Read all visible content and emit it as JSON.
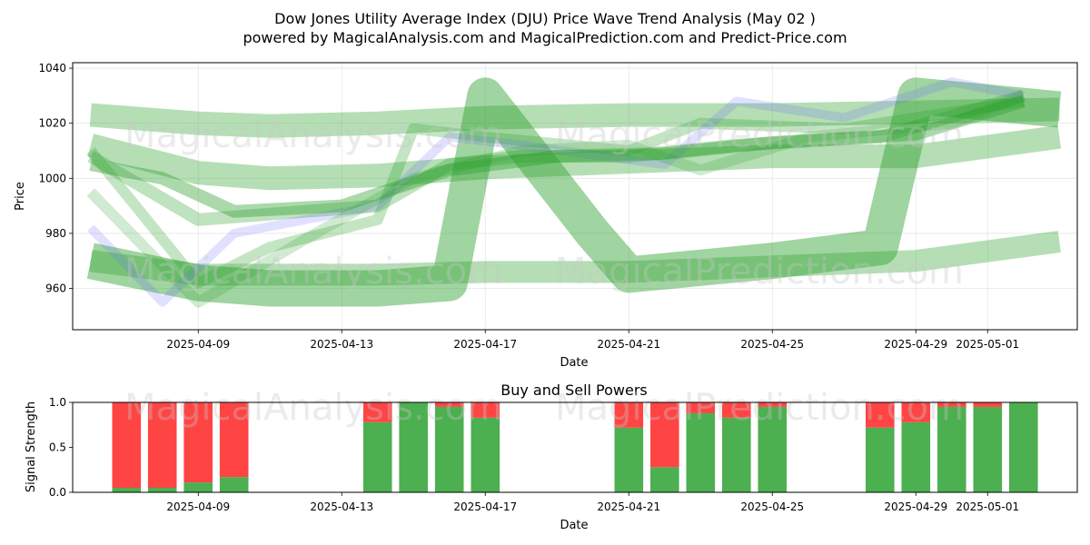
{
  "title_line1": "Dow Jones Utility Average Index (DJU) Price Wave Trend Analysis (May 02 )",
  "title_line2": "powered by MagicalAnalysis.com and MagicalPrediction.com and Predict-Price.com",
  "watermarks": [
    "MagicalAnalysis.com",
    "MagicalPrediction.com"
  ],
  "colors": {
    "green": "#2ca02c",
    "blue": "#6b6bff",
    "buy": "#4caf50",
    "sell": "#ff4444"
  },
  "chart_data": [
    {
      "type": "line",
      "title": "",
      "xlabel": "Date",
      "ylabel": "Price",
      "xlim": [
        "2025-04-05T12:00",
        "2025-05-03T12:00"
      ],
      "ylim": [
        945,
        1042
      ],
      "x_ticks": [
        "2025-04-09",
        "2025-04-13",
        "2025-04-17",
        "2025-04-21",
        "2025-04-25",
        "2025-04-29",
        "2025-05-01"
      ],
      "y_ticks": [
        960,
        980,
        1000,
        1020,
        1040
      ],
      "grid": true,
      "series": [
        {
          "color": "#2ca02c",
          "alpha": 0.35,
          "width": 26,
          "points": [
            [
              "2025-04-06",
              1023
            ],
            [
              "2025-04-09",
              1020
            ],
            [
              "2025-04-11",
              1019
            ],
            [
              "2025-04-14",
              1020
            ],
            [
              "2025-04-17",
              1022
            ],
            [
              "2025-04-21",
              1023
            ],
            [
              "2025-04-25",
              1023
            ],
            [
              "2025-04-29",
              1024
            ],
            [
              "2025-05-03",
              1025
            ]
          ]
        },
        {
          "color": "#2ca02c",
          "alpha": 0.35,
          "width": 26,
          "points": [
            [
              "2025-04-06",
              1012
            ],
            [
              "2025-04-09",
              1002
            ],
            [
              "2025-04-11",
              1000
            ],
            [
              "2025-04-14",
              1001
            ],
            [
              "2025-04-17",
              1004
            ],
            [
              "2025-04-21",
              1006
            ],
            [
              "2025-04-25",
              1008
            ],
            [
              "2025-04-29",
              1008
            ],
            [
              "2025-05-03",
              1015
            ]
          ]
        },
        {
          "color": "#2ca02c",
          "alpha": 0.45,
          "width": 40,
          "points": [
            [
              "2025-04-06",
              970
            ],
            [
              "2025-04-09",
              962
            ],
            [
              "2025-04-11",
              960
            ],
            [
              "2025-04-14",
              960
            ],
            [
              "2025-04-16",
              962
            ],
            [
              "2025-04-17",
              1030
            ],
            [
              "2025-04-20",
              980
            ],
            [
              "2025-04-21",
              965
            ],
            [
              "2025-04-25",
              970
            ],
            [
              "2025-04-28",
              975
            ],
            [
              "2025-04-29",
              1030
            ],
            [
              "2025-05-03",
              1025
            ]
          ]
        },
        {
          "color": "#2ca02c",
          "alpha": 0.35,
          "width": 24,
          "points": [
            [
              "2025-04-06",
              970
            ],
            [
              "2025-04-09",
              965
            ],
            [
              "2025-04-11",
              965
            ],
            [
              "2025-04-14",
              965
            ],
            [
              "2025-04-17",
              966
            ],
            [
              "2025-04-21",
              966
            ],
            [
              "2025-04-25",
              968
            ],
            [
              "2025-04-29",
              970
            ],
            [
              "2025-05-03",
              977
            ]
          ]
        },
        {
          "color": "#2ca02c",
          "alpha": 0.3,
          "width": 14,
          "points": [
            [
              "2025-04-06",
              1008
            ],
            [
              "2025-04-09",
              985
            ],
            [
              "2025-04-11",
              987
            ],
            [
              "2025-04-14",
              990
            ],
            [
              "2025-04-16",
              1005
            ],
            [
              "2025-04-18",
              1008
            ],
            [
              "2025-04-21",
              1008
            ],
            [
              "2025-04-24",
              1012
            ],
            [
              "2025-04-28",
              1015
            ],
            [
              "2025-05-02",
              1030
            ]
          ]
        },
        {
          "color": "#2ca02c",
          "alpha": 0.28,
          "width": 12,
          "points": [
            [
              "2025-04-06",
              1010
            ],
            [
              "2025-04-09",
              962
            ],
            [
              "2025-04-11",
              975
            ],
            [
              "2025-04-14",
              985
            ],
            [
              "2025-04-15",
              1018
            ],
            [
              "2025-04-17",
              1015
            ],
            [
              "2025-04-21",
              1010
            ],
            [
              "2025-04-23",
              1020
            ],
            [
              "2025-04-27",
              1018
            ],
            [
              "2025-05-02",
              1028
            ]
          ]
        },
        {
          "color": "#6b6bff",
          "alpha": 0.2,
          "width": 10,
          "points": [
            [
              "2025-04-06",
              982
            ],
            [
              "2025-04-08",
              955
            ],
            [
              "2025-04-10",
              980
            ],
            [
              "2025-04-14",
              990
            ],
            [
              "2025-04-16",
              1015
            ],
            [
              "2025-04-18",
              1012
            ],
            [
              "2025-04-22",
              1005
            ],
            [
              "2025-04-24",
              1028
            ],
            [
              "2025-04-27",
              1022
            ],
            [
              "2025-04-30",
              1035
            ],
            [
              "2025-05-02",
              1030
            ]
          ]
        },
        {
          "color": "#2ca02c",
          "alpha": 0.4,
          "width": 14,
          "points": [
            [
              "2025-04-06",
              1005
            ],
            [
              "2025-04-08",
              1000
            ],
            [
              "2025-04-10",
              988
            ],
            [
              "2025-04-13",
              990
            ],
            [
              "2025-04-16",
              1003
            ],
            [
              "2025-04-19",
              1008
            ],
            [
              "2025-04-22",
              1009
            ],
            [
              "2025-04-25",
              1013
            ],
            [
              "2025-04-29",
              1016
            ],
            [
              "2025-05-02",
              1028
            ]
          ]
        },
        {
          "color": "#2ca02c",
          "alpha": 0.22,
          "width": 12,
          "points": [
            [
              "2025-04-06",
              995
            ],
            [
              "2025-04-09",
              955
            ],
            [
              "2025-04-12",
              978
            ],
            [
              "2025-04-15",
              1000
            ],
            [
              "2025-04-18",
              1010
            ],
            [
              "2025-04-21",
              1012
            ],
            [
              "2025-04-23",
              1003
            ],
            [
              "2025-04-26",
              1015
            ],
            [
              "2025-04-30",
              1020
            ],
            [
              "2025-05-02",
              1030
            ]
          ]
        }
      ]
    },
    {
      "type": "bar",
      "title": "Buy and Sell Powers",
      "xlabel": "Date",
      "ylabel": "Signal Strength",
      "xlim": [
        "2025-04-05T12:00",
        "2025-05-03T12:00"
      ],
      "ylim": [
        0,
        1
      ],
      "x_ticks": [
        "2025-04-09",
        "2025-04-13",
        "2025-04-17",
        "2025-04-21",
        "2025-04-25",
        "2025-04-29",
        "2025-05-01"
      ],
      "y_ticks": [
        "0.0",
        "0.5",
        "1.0"
      ],
      "dates": [
        "2025-04-07",
        "2025-04-08",
        "2025-04-09",
        "2025-04-10",
        "2025-04-14",
        "2025-04-15",
        "2025-04-16",
        "2025-04-17",
        "2025-04-21",
        "2025-04-22",
        "2025-04-23",
        "2025-04-24",
        "2025-04-25",
        "2025-04-28",
        "2025-04-29",
        "2025-04-30",
        "2025-05-01",
        "2025-05-02"
      ],
      "series": [
        {
          "color": "#4caf50",
          "values": [
            0.05,
            0.05,
            0.11,
            0.17,
            0.78,
            1.0,
            0.95,
            0.83,
            0.72,
            0.28,
            0.88,
            0.83,
            0.95,
            0.72,
            0.78,
            0.95,
            0.95,
            1.0
          ]
        },
        {
          "color": "#ff4444",
          "values": [
            0.95,
            0.95,
            0.89,
            0.83,
            0.22,
            0.0,
            0.05,
            0.17,
            0.28,
            0.72,
            0.12,
            0.17,
            0.05,
            0.28,
            0.22,
            0.05,
            0.05,
            0.0
          ]
        }
      ]
    }
  ]
}
